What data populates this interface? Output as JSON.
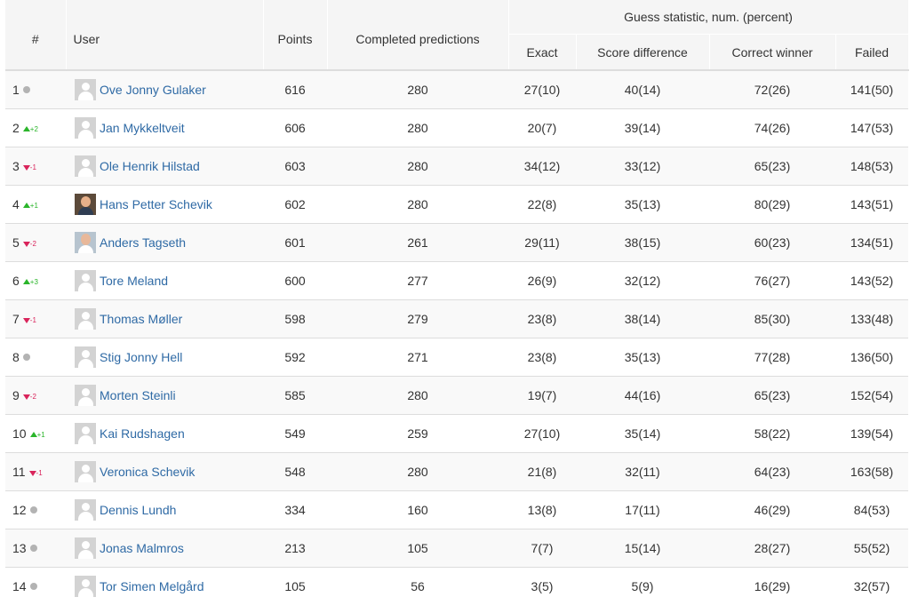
{
  "header": {
    "rank": "#",
    "user": "User",
    "points": "Points",
    "completed": "Completed predictions",
    "group": "Guess statistic, num. (percent)",
    "exact": "Exact",
    "score_diff": "Score difference",
    "correct_winner": "Correct winner",
    "failed": "Failed"
  },
  "colors": {
    "up": "#2ab52a",
    "down": "#d9245b",
    "same": "#b3b3b3",
    "link": "#2f6aa5"
  },
  "rows": [
    {
      "rank": "1",
      "trend": "same",
      "delta": "",
      "avatar": "default",
      "name": "Ove Jonny Gulaker",
      "points": "616",
      "completed": "280",
      "exact": "27(10)",
      "score_diff": "40(14)",
      "correct_winner": "72(26)",
      "failed": "141(50)"
    },
    {
      "rank": "2",
      "trend": "up",
      "delta": "+2",
      "avatar": "default",
      "name": "Jan Mykkeltveit",
      "points": "606",
      "completed": "280",
      "exact": "20(7)",
      "score_diff": "39(14)",
      "correct_winner": "74(26)",
      "failed": "147(53)"
    },
    {
      "rank": "3",
      "trend": "down",
      "delta": "-1",
      "avatar": "default",
      "name": "Ole Henrik Hilstad",
      "points": "603",
      "completed": "280",
      "exact": "34(12)",
      "score_diff": "33(12)",
      "correct_winner": "65(23)",
      "failed": "148(53)"
    },
    {
      "rank": "4",
      "trend": "up",
      "delta": "+1",
      "avatar": "photo",
      "name": "Hans Petter Schevik",
      "points": "602",
      "completed": "280",
      "exact": "22(8)",
      "score_diff": "35(13)",
      "correct_winner": "80(29)",
      "failed": "143(51)"
    },
    {
      "rank": "5",
      "trend": "down",
      "delta": "-2",
      "avatar": "photo2",
      "name": "Anders Tagseth",
      "points": "601",
      "completed": "261",
      "exact": "29(11)",
      "score_diff": "38(15)",
      "correct_winner": "60(23)",
      "failed": "134(51)"
    },
    {
      "rank": "6",
      "trend": "up",
      "delta": "+3",
      "avatar": "default",
      "name": "Tore Meland",
      "points": "600",
      "completed": "277",
      "exact": "26(9)",
      "score_diff": "32(12)",
      "correct_winner": "76(27)",
      "failed": "143(52)"
    },
    {
      "rank": "7",
      "trend": "down",
      "delta": "-1",
      "avatar": "default",
      "name": "Thomas Møller",
      "points": "598",
      "completed": "279",
      "exact": "23(8)",
      "score_diff": "38(14)",
      "correct_winner": "85(30)",
      "failed": "133(48)"
    },
    {
      "rank": "8",
      "trend": "same",
      "delta": "",
      "avatar": "default",
      "name": "Stig Jonny Hell",
      "points": "592",
      "completed": "271",
      "exact": "23(8)",
      "score_diff": "35(13)",
      "correct_winner": "77(28)",
      "failed": "136(50)"
    },
    {
      "rank": "9",
      "trend": "down",
      "delta": "-2",
      "avatar": "default",
      "name": "Morten Steinli",
      "points": "585",
      "completed": "280",
      "exact": "19(7)",
      "score_diff": "44(16)",
      "correct_winner": "65(23)",
      "failed": "152(54)"
    },
    {
      "rank": "10",
      "trend": "up",
      "delta": "+1",
      "avatar": "default",
      "name": "Kai Rudshagen",
      "points": "549",
      "completed": "259",
      "exact": "27(10)",
      "score_diff": "35(14)",
      "correct_winner": "58(22)",
      "failed": "139(54)"
    },
    {
      "rank": "11",
      "trend": "down",
      "delta": "-1",
      "avatar": "default",
      "name": "Veronica Schevik",
      "points": "548",
      "completed": "280",
      "exact": "21(8)",
      "score_diff": "32(11)",
      "correct_winner": "64(23)",
      "failed": "163(58)"
    },
    {
      "rank": "12",
      "trend": "same",
      "delta": "",
      "avatar": "default",
      "name": "Dennis Lundh",
      "points": "334",
      "completed": "160",
      "exact": "13(8)",
      "score_diff": "17(11)",
      "correct_winner": "46(29)",
      "failed": "84(53)"
    },
    {
      "rank": "13",
      "trend": "same",
      "delta": "",
      "avatar": "default",
      "name": "Jonas Malmros",
      "points": "213",
      "completed": "105",
      "exact": "7(7)",
      "score_diff": "15(14)",
      "correct_winner": "28(27)",
      "failed": "55(52)"
    },
    {
      "rank": "14",
      "trend": "same",
      "delta": "",
      "avatar": "default",
      "name": "Tor Simen Melgård",
      "points": "105",
      "completed": "56",
      "exact": "3(5)",
      "score_diff": "5(9)",
      "correct_winner": "16(29)",
      "failed": "32(57)"
    }
  ]
}
